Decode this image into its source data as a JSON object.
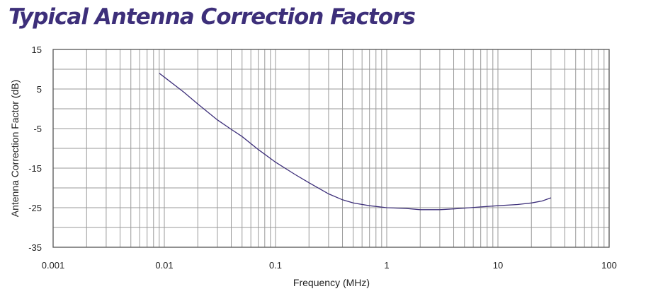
{
  "title": "Typical Antenna Correction Factors",
  "colors": {
    "title": "#3d2f7a",
    "line": "#3d2f7a",
    "grid": "#9a9a9a",
    "frame": "#555555",
    "text": "#222222"
  },
  "chart_data": {
    "type": "line",
    "title": "Typical Antenna Correction Factors",
    "xlabel": "Frequency (MHz)",
    "ylabel": "Antenna Correction Factor (dB)",
    "x_scale": "log",
    "xlim": [
      0.001,
      100
    ],
    "ylim": [
      -35,
      15
    ],
    "x_ticks": [
      "0.001",
      "0.01",
      "0.1",
      "1",
      "10",
      "100"
    ],
    "y_ticks": [
      "15",
      "5",
      "-5",
      "-15",
      "-25",
      "-35"
    ],
    "grid": true,
    "legend": "none",
    "series": [
      {
        "x": [
          0.009,
          0.01,
          0.015,
          0.02,
          0.03,
          0.04,
          0.05,
          0.07,
          0.1,
          0.15,
          0.2,
          0.3,
          0.4,
          0.5,
          0.7,
          1,
          1.5,
          2,
          3,
          4,
          5,
          7,
          10,
          15,
          20,
          25,
          30
        ],
        "y": [
          9,
          8,
          4.2,
          1.2,
          -2.8,
          -5.2,
          -7,
          -10.3,
          -13.5,
          -16.6,
          -18.7,
          -21.5,
          -23,
          -23.8,
          -24.5,
          -25,
          -25.2,
          -25.5,
          -25.5,
          -25.3,
          -25.1,
          -24.8,
          -24.5,
          -24.2,
          -23.8,
          -23.3,
          -22.5
        ]
      }
    ]
  }
}
